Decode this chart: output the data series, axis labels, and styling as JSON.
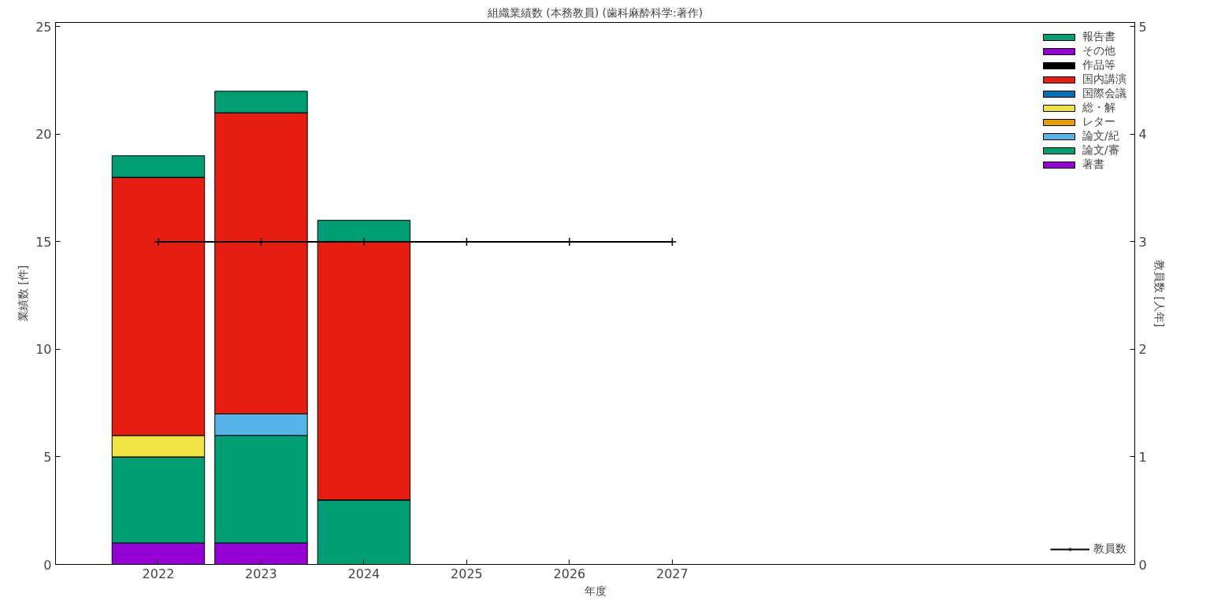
{
  "chart_data": {
    "type": "bar",
    "stacked": true,
    "title": "組織業績数 (本務教員) (歯科麻酔科学:著作)",
    "xlabel": "年度",
    "ylabel": "業績数 [件]",
    "y2label": "教員数 [人年]",
    "x": [
      2022,
      2023,
      2024,
      2025,
      2026,
      2027
    ],
    "xlim": [
      2021,
      2031.5
    ],
    "xticks": [
      2022,
      2023,
      2024,
      2025,
      2026,
      2027
    ],
    "ylim": [
      0,
      25.2
    ],
    "yticks": [
      0,
      5,
      10,
      15,
      20,
      25
    ],
    "y2lim": [
      0,
      5.04
    ],
    "y2ticks": [
      0,
      1,
      2,
      3,
      4,
      5
    ],
    "grid": false,
    "legend": "top right",
    "series": [
      {
        "name": "著書",
        "color": "#9400d3",
        "values": [
          1,
          1,
          0,
          0,
          0,
          0
        ]
      },
      {
        "name": "論文/審",
        "color": "#009e73",
        "values": [
          4,
          5,
          3,
          0,
          0,
          0
        ]
      },
      {
        "name": "論文/紀",
        "color": "#56b4e9",
        "values": [
          0,
          1,
          0,
          0,
          0,
          0
        ]
      },
      {
        "name": "レター",
        "color": "#e69f00",
        "values": [
          0,
          0,
          0,
          0,
          0,
          0
        ]
      },
      {
        "name": "総・解",
        "color": "#f0e442",
        "values": [
          1,
          0,
          0,
          0,
          0,
          0
        ]
      },
      {
        "name": "国際会議",
        "color": "#0072b2",
        "values": [
          0,
          0,
          0,
          0,
          0,
          0
        ]
      },
      {
        "name": "国内講演",
        "color": "#e51e10",
        "values": [
          12,
          14,
          12,
          0,
          0,
          0
        ]
      },
      {
        "name": "作品等",
        "color": "#000000",
        "values": [
          0,
          0,
          0,
          0,
          0,
          0
        ]
      },
      {
        "name": "その他",
        "color": "#9400d3",
        "values": [
          0,
          0,
          0,
          0,
          0,
          0
        ]
      },
      {
        "name": "報告書",
        "color": "#009e73",
        "values": [
          1,
          1,
          1,
          0,
          0,
          0
        ]
      },
      {
        "name": "教員数",
        "type": "line",
        "axis": "y2",
        "color": "#000000",
        "marker": "cross",
        "values": [
          3,
          3,
          3,
          3,
          3,
          3
        ]
      }
    ]
  }
}
